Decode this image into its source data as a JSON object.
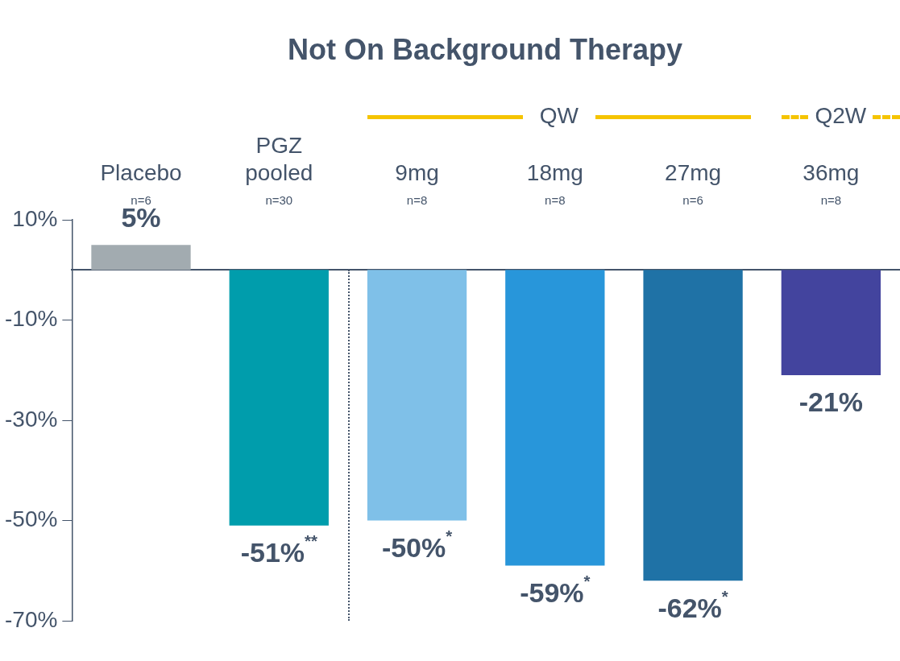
{
  "chart_data": {
    "type": "bar",
    "title": "Not On Background Therapy",
    "categories": [
      "Placebo\nn=6",
      "PGZ\npooled\nn=30",
      "9mg\nn=8",
      "18mg\nn=8",
      "27mg\nn=6",
      "36mg\nn=8"
    ],
    "values": [
      5,
      -51,
      -50,
      -59,
      -62,
      -21
    ],
    "colors": [
      "#a2abb0",
      "#009dac",
      "#7fc0e8",
      "#2896da",
      "#1f72a6",
      "#43449e"
    ],
    "value_labels": [
      "5%",
      "-51%$^{**}$",
      "-50%$^{*}$",
      "-59%$^{*}$",
      "-62%$^{*}$",
      "-21%"
    ],
    "ylim": [
      -70,
      10
    ],
    "yticks": [
      {
        "value": 10,
        "label": "10%"
      },
      {
        "value": -10,
        "label": "-10%"
      },
      {
        "value": -30,
        "label": "-30%"
      },
      {
        "value": -50,
        "label": "-50%"
      },
      {
        "value": -70,
        "label": "-70%"
      }
    ],
    "annotations": [
      "QW",
      "Q2W"
    ],
    "grid": false,
    "legend": false
  }
}
